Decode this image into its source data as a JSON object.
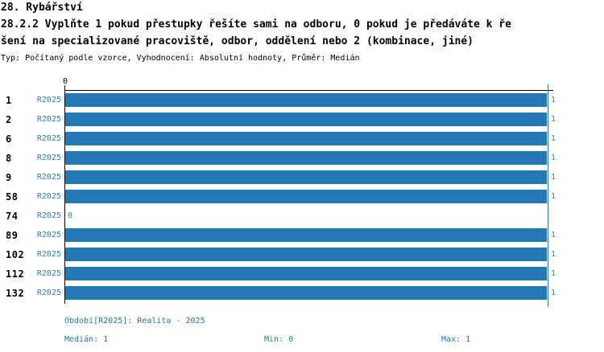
{
  "header": {
    "title_line1": "28. Rybářství",
    "title_line2": "28.2.2 Vyplňte 1 pokud přestupky řešíte sami na odboru, 0 pokud je předáváte k ře",
    "title_line3": "šení na specializované pracoviště, odbor, oddělení nebo 2 (kombinace, jiné)",
    "subtitle": "Typ: Počítaný podle vzorce, Vyhodnocení: Absolutní hodnoty, Průměr: Medián"
  },
  "colors": {
    "bar_blue": "#2478b4",
    "label_blue": "#2e7fc0",
    "footer_teal": "#1b7aa2",
    "axis_black": "#000000"
  },
  "chart_data": {
    "type": "bar",
    "orientation": "horizontal",
    "xlabel": "",
    "ylabel": "",
    "xlim": [
      0,
      1
    ],
    "x_tick_labels": [
      "0",
      "1"
    ],
    "axis_zero_label": "0",
    "grid": "single vertical gridline at x=1",
    "legend_position": "none",
    "series_label": "R2025",
    "categories": [
      "1",
      "2",
      "6",
      "8",
      "9",
      "58",
      "74",
      "89",
      "102",
      "112",
      "132"
    ],
    "values": [
      1,
      1,
      1,
      1,
      1,
      1,
      0,
      1,
      1,
      1,
      1
    ],
    "rows": [
      {
        "category": "1",
        "series": "R2025",
        "value": 1,
        "value_label": "1"
      },
      {
        "category": "2",
        "series": "R2025",
        "value": 1,
        "value_label": "1"
      },
      {
        "category": "6",
        "series": "R2025",
        "value": 1,
        "value_label": "1"
      },
      {
        "category": "8",
        "series": "R2025",
        "value": 1,
        "value_label": "1"
      },
      {
        "category": "9",
        "series": "R2025",
        "value": 1,
        "value_label": "1"
      },
      {
        "category": "58",
        "series": "R2025",
        "value": 1,
        "value_label": "1"
      },
      {
        "category": "74",
        "series": "R2025",
        "value": 0,
        "value_label": "0"
      },
      {
        "category": "89",
        "series": "R2025",
        "value": 1,
        "value_label": "1"
      },
      {
        "category": "102",
        "series": "R2025",
        "value": 1,
        "value_label": "1"
      },
      {
        "category": "112",
        "series": "R2025",
        "value": 1,
        "value_label": "1"
      },
      {
        "category": "132",
        "series": "R2025",
        "value": 1,
        "value_label": "1"
      }
    ]
  },
  "footer": {
    "period": "Období[R2025]: Realita - 2025",
    "median": "Medián: 1",
    "min": "Min: 0",
    "max": "Max: 1"
  }
}
